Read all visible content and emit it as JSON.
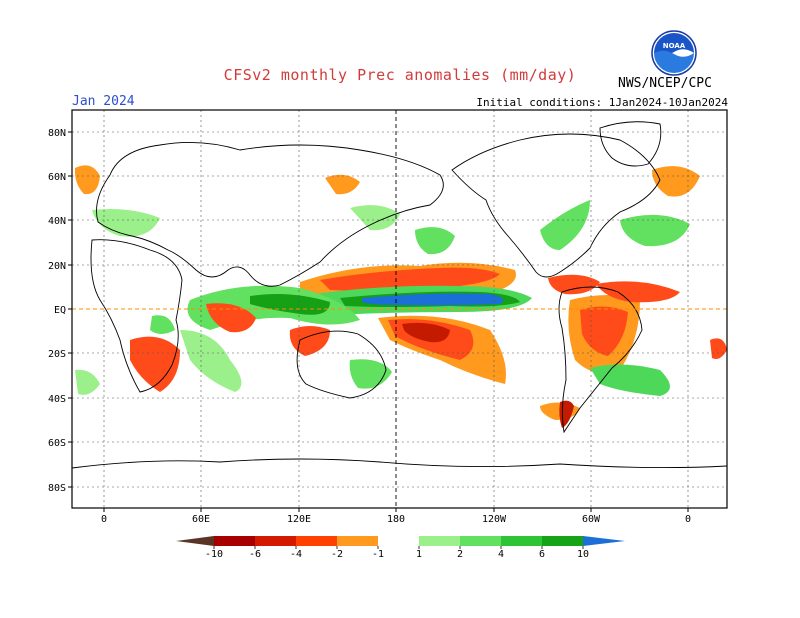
{
  "header": {
    "title": "CFSv2 monthly Prec anomalies (mm/day)",
    "month": "Jan 2024",
    "initial_conditions": "Initial conditions: 1Jan2024-10Jan2024",
    "agency": "NWS/NCEP/CPC",
    "logo_text": "NOAA"
  },
  "axes": {
    "lat_labels": [
      "80N",
      "60N",
      "40N",
      "20N",
      "EQ",
      "20S",
      "40S",
      "60S",
      "80S"
    ],
    "lon_labels": [
      "0",
      "60E",
      "120E",
      "180",
      "120W",
      "60W",
      "0"
    ]
  },
  "colorbar": {
    "labels": [
      "-10",
      "-6",
      "-4",
      "-2",
      "-1",
      "1",
      "2",
      "4",
      "6",
      "10"
    ],
    "colors": [
      "#5a3525",
      "#a80000",
      "#d21a00",
      "#ff4000",
      "#ff9a1f",
      "#ffffff",
      "#9cf08c",
      "#62e060",
      "#2ec436",
      "#17a317",
      "#1b6fd6"
    ]
  },
  "palette": {
    "dry_strong": "#c41a00",
    "dry_mid": "#ff4a1a",
    "dry_weak": "#ff9a1f",
    "wet_weak": "#9cf08c",
    "wet_mid": "#4ed85a",
    "wet_strong": "#15a015",
    "wet_extreme": "#1b6fd6",
    "title_color": "#d23b3b",
    "month_color": "#2b4fd0"
  }
}
